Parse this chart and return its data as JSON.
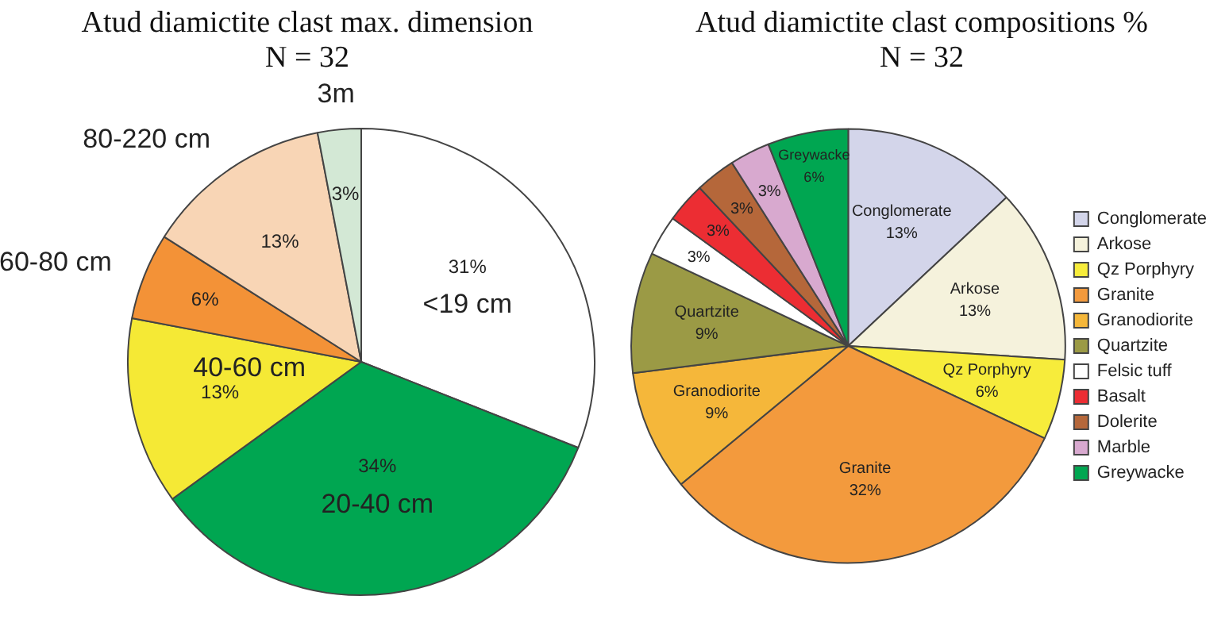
{
  "chart_data": [
    {
      "type": "pie",
      "title": "Atud diamictite clast max. dimension",
      "subtitle": "N = 32",
      "categories": [
        "<19 cm",
        "20-40 cm",
        "40-60 cm",
        "60-80 cm",
        "80-220 cm",
        "3m"
      ],
      "values": [
        31,
        34,
        13,
        6,
        13,
        3
      ],
      "colors": [
        "#ffffff",
        "#00a651",
        "#f5e935",
        "#f39237",
        "#f8d5b5",
        "#d3e8d5"
      ],
      "value_labels": [
        "31%",
        "34%",
        "13%",
        "6%",
        "13%",
        "3%"
      ],
      "legend": false
    },
    {
      "type": "pie",
      "title": "Atud diamictite clast compositions %",
      "subtitle": "N = 32",
      "categories": [
        "Conglomerate",
        "Arkose",
        "Qz Porphyry",
        "Granite",
        "Granodiorite",
        "Quartzite",
        "Felsic tuff",
        "Basalt",
        "Dolerite",
        "Marble",
        "Greywacke"
      ],
      "values": [
        13,
        13,
        6,
        32,
        9,
        9,
        3,
        3,
        3,
        3,
        6
      ],
      "colors": [
        "#d3d5ea",
        "#f5f2dc",
        "#f7ec3b",
        "#f39a3d",
        "#f5b73a",
        "#9b9a45",
        "#ffffff",
        "#ec2d33",
        "#b5673a",
        "#d8a9cf",
        "#00a651"
      ],
      "value_labels": [
        "13%",
        "13%",
        "6%",
        "32%",
        "9%",
        "9%",
        "3%",
        "3%",
        "3%",
        "3%",
        "6%"
      ],
      "legend": "right"
    }
  ]
}
